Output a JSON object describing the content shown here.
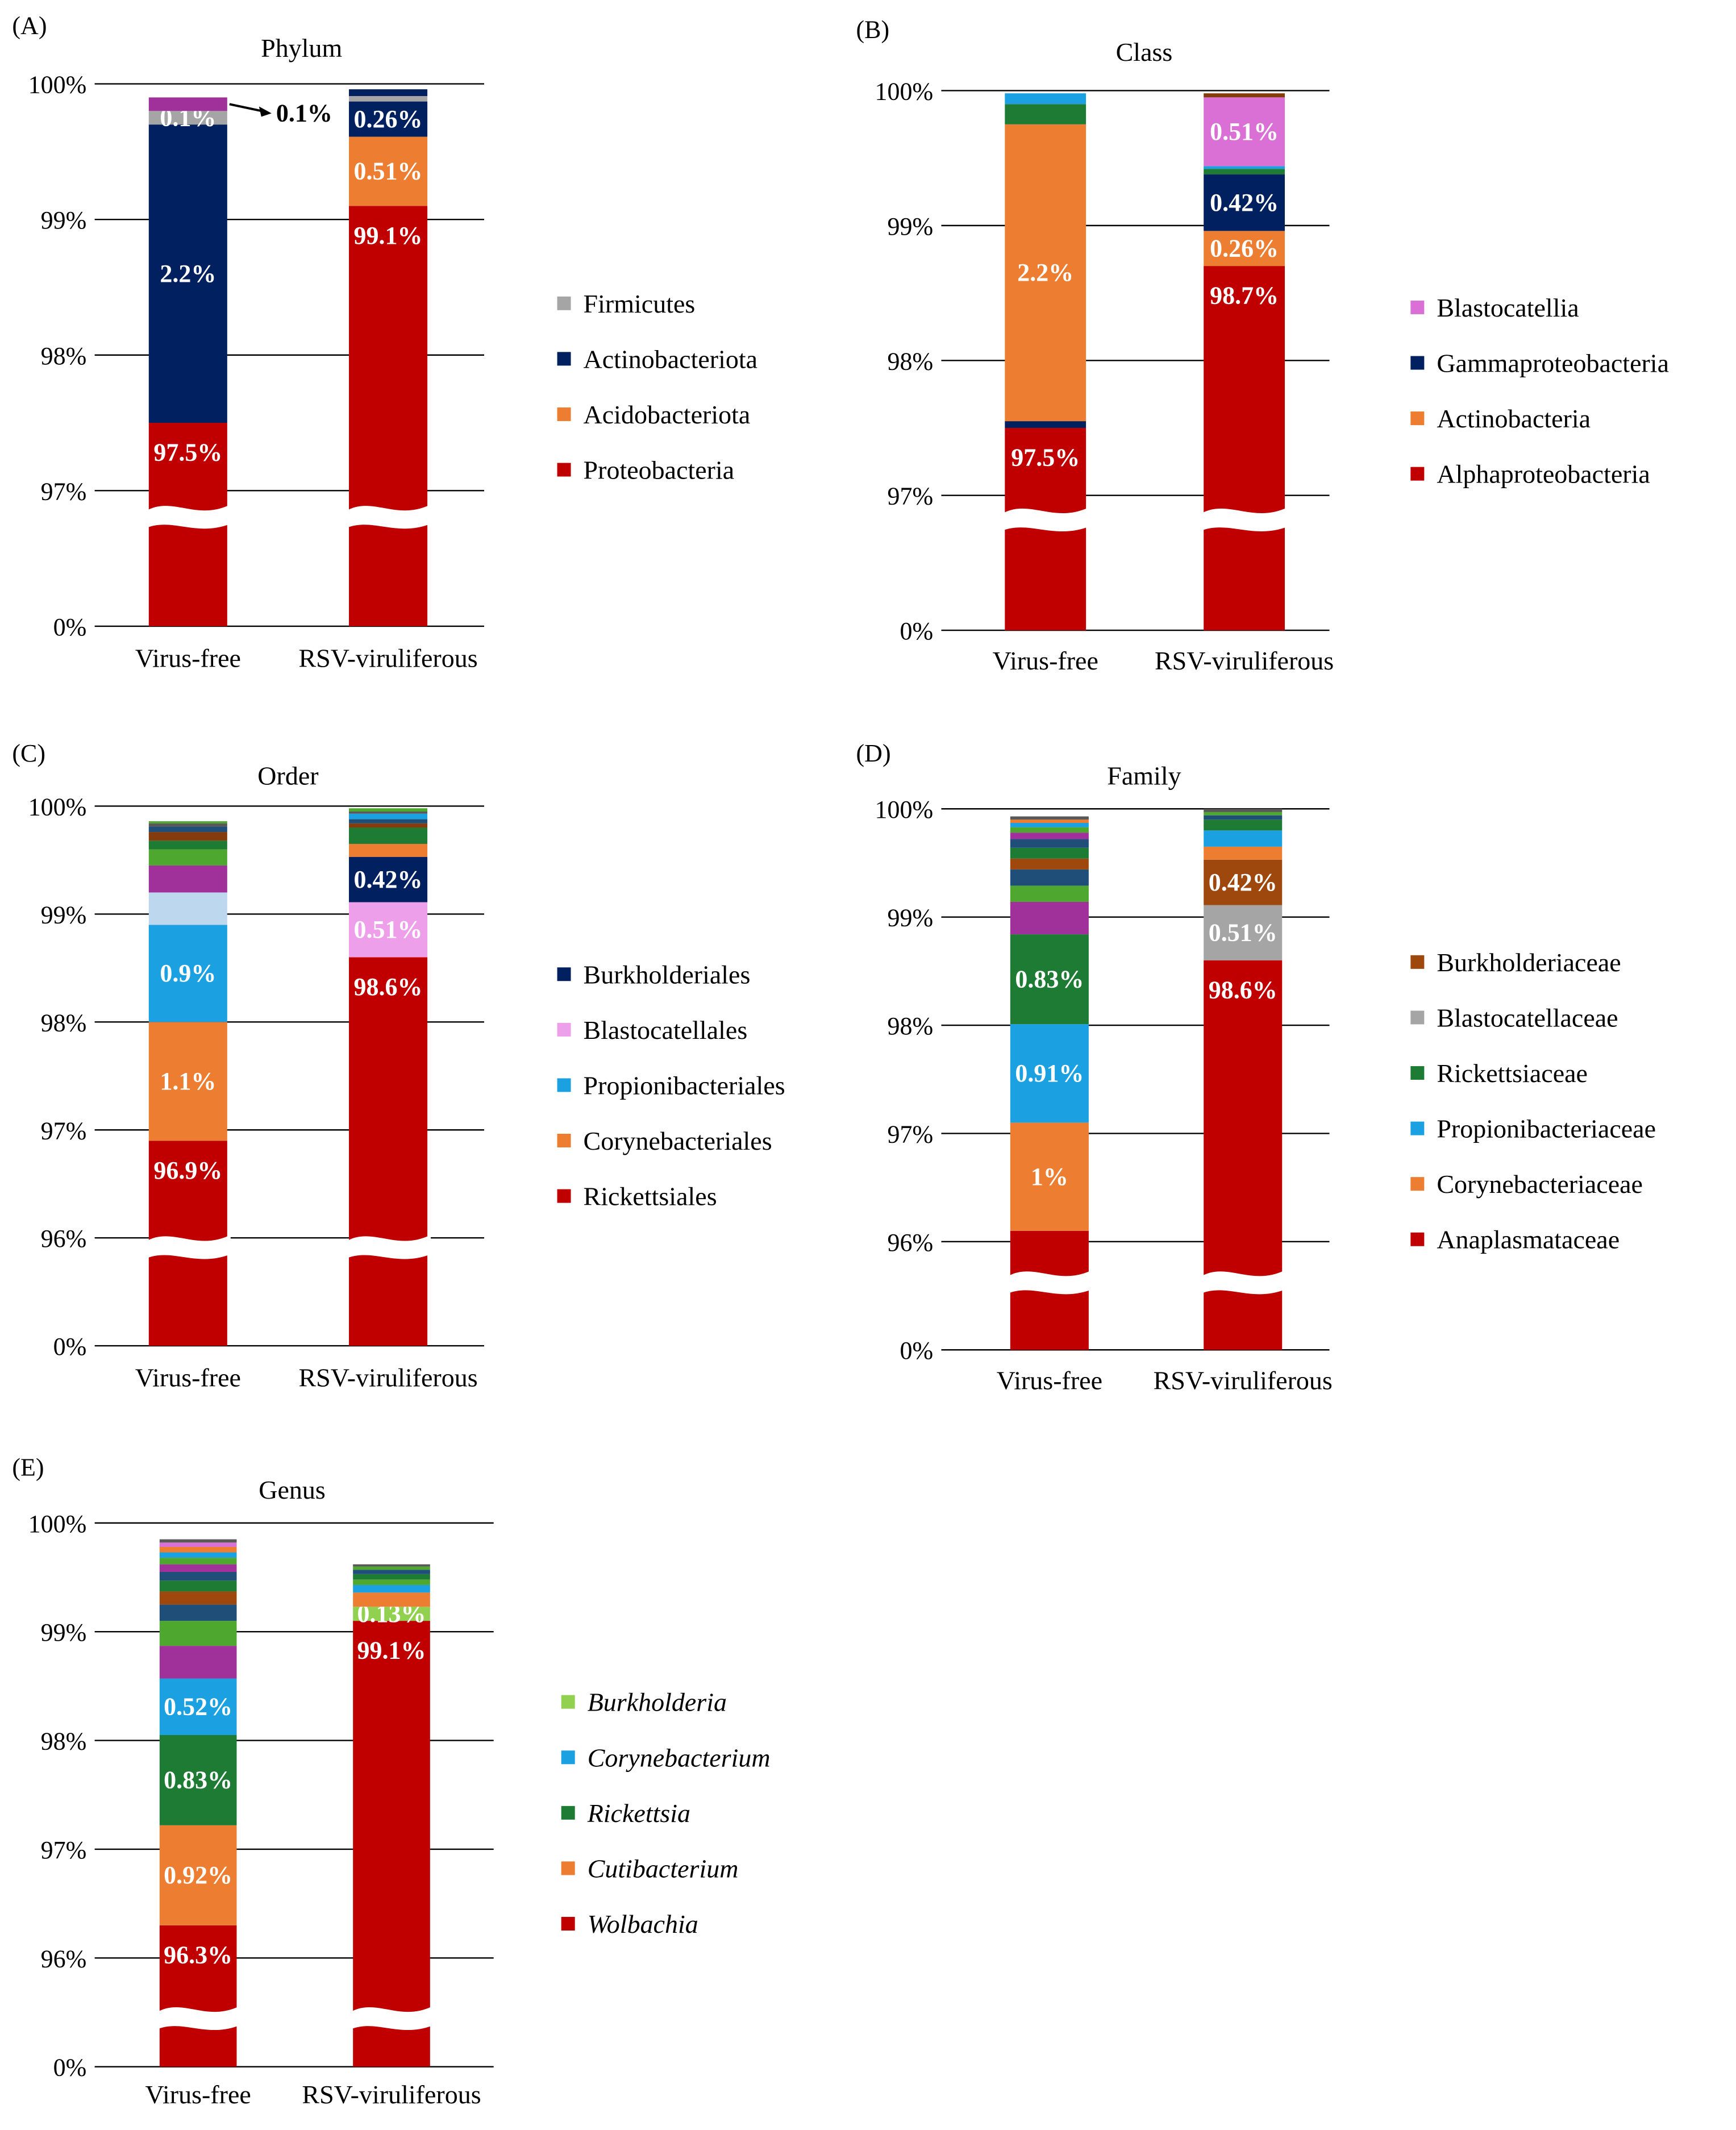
{
  "chart_data": [
    {
      "panel": "(A)",
      "title": "Phylum",
      "type": "bar",
      "categories": [
        "Virus-free",
        "RSV-viruliferous"
      ],
      "y_ticks": [
        "0%",
        "97%",
        "98%",
        "99%",
        "100%"
      ],
      "axis_break": true,
      "ylim": [
        97,
        100
      ],
      "stacked": true,
      "series": [
        {
          "name": "Proteobacteria",
          "color": "#C00000",
          "values": [
            97.5,
            99.1
          ],
          "labels": [
            "97.5%",
            "99.1%"
          ]
        },
        {
          "name": "Acidobacteriota",
          "color": "#ED7D31",
          "values": [
            0,
            0.51
          ],
          "labels": [
            "",
            "0.51%"
          ]
        },
        {
          "name": "Actinobacteriota",
          "color": "#002060",
          "values": [
            2.2,
            0.26
          ],
          "labels": [
            "2.2%",
            "0.26%"
          ]
        },
        {
          "name": "Firmicutes",
          "color": "#A5A5A5",
          "values": [
            0.1,
            0.04
          ],
          "labels": [
            "0.1%",
            ""
          ]
        },
        {
          "name": "",
          "color": "#A0309A",
          "values": [
            0.1,
            0
          ],
          "labels": [
            "",
            ""
          ]
        },
        {
          "name": "",
          "color": "#002060",
          "values": [
            0,
            0.05
          ],
          "labels": [
            "",
            ""
          ]
        }
      ],
      "annotation": "0.1%"
    },
    {
      "panel": "(B)",
      "title": "Class",
      "type": "bar",
      "categories": [
        "Virus-free",
        "RSV-viruliferous"
      ],
      "y_ticks": [
        "0%",
        "97%",
        "98%",
        "99%",
        "100%"
      ],
      "axis_break": true,
      "ylim": [
        97,
        100
      ],
      "stacked": true,
      "series": [
        {
          "name": "Alphaproteobacteria",
          "color": "#C00000",
          "values": [
            97.5,
            98.7
          ],
          "labels": [
            "97.5%",
            "98.7%"
          ]
        },
        {
          "name": "",
          "color": "#002060",
          "values": [
            0.05,
            0
          ],
          "labels": [
            "",
            ""
          ]
        },
        {
          "name": "Actinobacteria",
          "color": "#ED7D31",
          "values": [
            2.2,
            0.26
          ],
          "labels": [
            "2.2%",
            "0.26%"
          ]
        },
        {
          "name": "Gammaproteobacteria",
          "color": "#002060",
          "values": [
            0,
            0.42
          ],
          "labels": [
            "",
            "0.42%"
          ]
        },
        {
          "name": "",
          "color": "#1E7B34",
          "values": [
            0.15,
            0.04
          ],
          "labels": [
            "",
            ""
          ]
        },
        {
          "name": "",
          "color": "#1BA1E2",
          "values": [
            0.08,
            0.02
          ],
          "labels": [
            "",
            ""
          ]
        },
        {
          "name": "Blastocatellia",
          "color": "#DA70D6",
          "values": [
            0,
            0.51
          ],
          "labels": [
            "",
            "0.51%"
          ]
        },
        {
          "name": "",
          "color": "#843C0C",
          "values": [
            0,
            0.03
          ],
          "labels": [
            "",
            ""
          ]
        }
      ]
    },
    {
      "panel": "(C)",
      "title": "Order",
      "type": "bar",
      "categories": [
        "Virus-free",
        "RSV-viruliferous"
      ],
      "y_ticks": [
        "0%",
        "96%",
        "97%",
        "98%",
        "99%",
        "100%"
      ],
      "axis_break": true,
      "ylim": [
        96,
        100
      ],
      "stacked": true,
      "series": [
        {
          "name": "Rickettsiales",
          "color": "#C00000",
          "values": [
            96.9,
            98.6
          ],
          "labels": [
            "96.9%",
            "98.6%"
          ]
        },
        {
          "name": "Corynebacteriales",
          "color": "#ED7D31",
          "values": [
            1.1,
            0
          ],
          "labels": [
            "1.1%",
            ""
          ]
        },
        {
          "name": "Propionibacteriales",
          "color": "#1BA1E2",
          "values": [
            0.9,
            0
          ],
          "labels": [
            "0.9%",
            ""
          ]
        },
        {
          "name": "Blastocatellales",
          "color": "#EE9FEA",
          "values": [
            0,
            0.51
          ],
          "labels": [
            "",
            "0.51%"
          ]
        },
        {
          "name": "Burkholderiales",
          "color": "#002060",
          "values": [
            0,
            0.42
          ],
          "labels": [
            "",
            "0.42%"
          ]
        },
        {
          "name": "",
          "color": "#BDD7EE",
          "values": [
            0.3,
            0
          ],
          "labels": [
            "",
            ""
          ]
        },
        {
          "name": "",
          "color": "#A0309A",
          "values": [
            0.25,
            0
          ],
          "labels": [
            "",
            ""
          ]
        },
        {
          "name": "",
          "color": "#4EA72E",
          "values": [
            0.15,
            0
          ],
          "labels": [
            "",
            ""
          ]
        },
        {
          "name": "",
          "color": "#ED7D31",
          "values": [
            0,
            0.12
          ],
          "labels": [
            "",
            ""
          ]
        },
        {
          "name": "",
          "color": "#1E7B34",
          "values": [
            0.08,
            0.15
          ],
          "labels": [
            "",
            ""
          ]
        },
        {
          "name": "",
          "color": "#843C0C",
          "values": [
            0.08,
            0.04
          ],
          "labels": [
            "",
            ""
          ]
        },
        {
          "name": "",
          "color": "#1F4E79",
          "values": [
            0.05,
            0.04
          ],
          "labels": [
            "",
            ""
          ]
        },
        {
          "name": "",
          "color": "#1BA1E2",
          "values": [
            0,
            0.05
          ],
          "labels": [
            "",
            ""
          ]
        },
        {
          "name": "",
          "color": "#595959",
          "values": [
            0.03,
            0.02
          ],
          "labels": [
            "",
            ""
          ]
        },
        {
          "name": "",
          "color": "#4EA72E",
          "values": [
            0.02,
            0.03
          ],
          "labels": [
            "",
            ""
          ]
        }
      ]
    },
    {
      "panel": "(D)",
      "title": "Family",
      "type": "bar",
      "categories": [
        "Virus-free",
        "RSV-viruliferous"
      ],
      "y_ticks": [
        "0%",
        "96%",
        "97%",
        "98%",
        "99%",
        "100%"
      ],
      "axis_break": true,
      "ylim": [
        96,
        100
      ],
      "stacked": true,
      "series": [
        {
          "name": "Anaplasmataceae",
          "color": "#C00000",
          "values": [
            96.1,
            98.6
          ],
          "labels": [
            "",
            "98.6%"
          ]
        },
        {
          "name": "Corynebacteriaceae",
          "color": "#ED7D31",
          "values": [
            1.0,
            0
          ],
          "labels": [
            "1%",
            ""
          ]
        },
        {
          "name": "Propionibacteriaceae",
          "color": "#1BA1E2",
          "values": [
            0.91,
            0
          ],
          "labels": [
            "0.91%",
            ""
          ]
        },
        {
          "name": "Rickettsiaceae",
          "color": "#1E7B34",
          "values": [
            0.83,
            0
          ],
          "labels": [
            "0.83%",
            ""
          ]
        },
        {
          "name": "Blastocatellaceae",
          "color": "#A5A5A5",
          "values": [
            0,
            0.51
          ],
          "labels": [
            "",
            "0.51%"
          ]
        },
        {
          "name": "Burkholderiaceae",
          "color": "#9E480E",
          "values": [
            0,
            0.42
          ],
          "labels": [
            "",
            "0.42%"
          ]
        },
        {
          "name": "",
          "color": "#A0309A",
          "values": [
            0.3,
            0
          ],
          "labels": [
            "",
            ""
          ]
        },
        {
          "name": "",
          "color": "#4EA72E",
          "values": [
            0.15,
            0
          ],
          "labels": [
            "",
            ""
          ]
        },
        {
          "name": "",
          "color": "#ED7D31",
          "values": [
            0,
            0.12
          ],
          "labels": [
            "",
            ""
          ]
        },
        {
          "name": "",
          "color": "#1F4E79",
          "values": [
            0.15,
            0
          ],
          "labels": [
            "",
            ""
          ]
        },
        {
          "name": "",
          "color": "#1BA1E2",
          "values": [
            0,
            0.15
          ],
          "labels": [
            "",
            ""
          ]
        },
        {
          "name": "",
          "color": "#9E480E",
          "values": [
            0.1,
            0
          ],
          "labels": [
            "",
            ""
          ]
        },
        {
          "name": "",
          "color": "#1E7B34",
          "values": [
            0.1,
            0.1
          ],
          "labels": [
            "",
            ""
          ]
        },
        {
          "name": "",
          "color": "#1F4E79",
          "values": [
            0.08,
            0.04
          ],
          "labels": [
            "",
            ""
          ]
        },
        {
          "name": "",
          "color": "#A0309A",
          "values": [
            0.06,
            0
          ],
          "labels": [
            "",
            ""
          ]
        },
        {
          "name": "",
          "color": "#4EA72E",
          "values": [
            0.05,
            0.03
          ],
          "labels": [
            "",
            ""
          ]
        },
        {
          "name": "",
          "color": "#1BA1E2",
          "values": [
            0.04,
            0
          ],
          "labels": [
            "",
            ""
          ]
        },
        {
          "name": "",
          "color": "#ED7D31",
          "values": [
            0.03,
            0
          ],
          "labels": [
            "",
            ""
          ]
        },
        {
          "name": "",
          "color": "#595959",
          "values": [
            0.03,
            0.03
          ],
          "labels": [
            "",
            ""
          ]
        }
      ]
    },
    {
      "panel": "(E)",
      "title": "Genus",
      "type": "bar",
      "categories": [
        "Virus-free",
        "RSV-viruliferous"
      ],
      "y_ticks": [
        "0%",
        "96%",
        "97%",
        "98%",
        "99%",
        "100%"
      ],
      "axis_break": true,
      "ylim": [
        96,
        100
      ],
      "stacked": true,
      "series": [
        {
          "name": "Wolbachia",
          "color": "#C00000",
          "values": [
            96.3,
            99.1
          ],
          "labels": [
            "96.3%",
            "99.1%"
          ],
          "italic": true
        },
        {
          "name": "Cutibacterium",
          "color": "#ED7D31",
          "values": [
            0.92,
            0
          ],
          "labels": [
            "0.92%",
            ""
          ],
          "italic": true
        },
        {
          "name": "Rickettsia",
          "color": "#1E7B34",
          "values": [
            0.83,
            0
          ],
          "labels": [
            "0.83%",
            ""
          ],
          "italic": true
        },
        {
          "name": "Corynebacterium",
          "color": "#1BA1E2",
          "values": [
            0.52,
            0
          ],
          "labels": [
            "0.52%",
            ""
          ],
          "italic": true
        },
        {
          "name": "Burkholderia",
          "color": "#92D050",
          "values": [
            0,
            0.13
          ],
          "labels": [
            "",
            "0.13%"
          ],
          "italic": true
        },
        {
          "name": "",
          "color": "#A0309A",
          "values": [
            0.3,
            0
          ],
          "labels": [
            "",
            ""
          ]
        },
        {
          "name": "",
          "color": "#4EA72E",
          "values": [
            0.23,
            0
          ],
          "labels": [
            "",
            ""
          ]
        },
        {
          "name": "",
          "color": "#ED7D31",
          "values": [
            0,
            0.13
          ],
          "labels": [
            "",
            ""
          ]
        },
        {
          "name": "",
          "color": "#1F4E79",
          "values": [
            0.15,
            0
          ],
          "labels": [
            "",
            ""
          ]
        },
        {
          "name": "",
          "color": "#1BA1E2",
          "values": [
            0,
            0.07
          ],
          "labels": [
            "",
            ""
          ]
        },
        {
          "name": "",
          "color": "#9E480E",
          "values": [
            0.12,
            0
          ],
          "labels": [
            "",
            ""
          ]
        },
        {
          "name": "",
          "color": "#4EA72E",
          "values": [
            0,
            0.05
          ],
          "labels": [
            "",
            ""
          ]
        },
        {
          "name": "",
          "color": "#1E7B34",
          "values": [
            0.1,
            0.05
          ],
          "labels": [
            "",
            ""
          ]
        },
        {
          "name": "",
          "color": "#1F4E79",
          "values": [
            0.08,
            0.04
          ],
          "labels": [
            "",
            ""
          ]
        },
        {
          "name": "",
          "color": "#A0309A",
          "values": [
            0.07,
            0
          ],
          "labels": [
            "",
            ""
          ]
        },
        {
          "name": "",
          "color": "#4EA72E",
          "values": [
            0.06,
            0.03
          ],
          "labels": [
            "",
            ""
          ]
        },
        {
          "name": "",
          "color": "#1BA1E2",
          "values": [
            0.05,
            0
          ],
          "labels": [
            "",
            ""
          ]
        },
        {
          "name": "",
          "color": "#ED7D31",
          "values": [
            0.05,
            0
          ],
          "labels": [
            "",
            ""
          ]
        },
        {
          "name": "",
          "color": "#DA70D6",
          "values": [
            0.04,
            0
          ],
          "labels": [
            "",
            ""
          ]
        },
        {
          "name": "",
          "color": "#595959",
          "values": [
            0.03,
            0.02
          ],
          "labels": [
            "",
            ""
          ]
        }
      ]
    }
  ]
}
